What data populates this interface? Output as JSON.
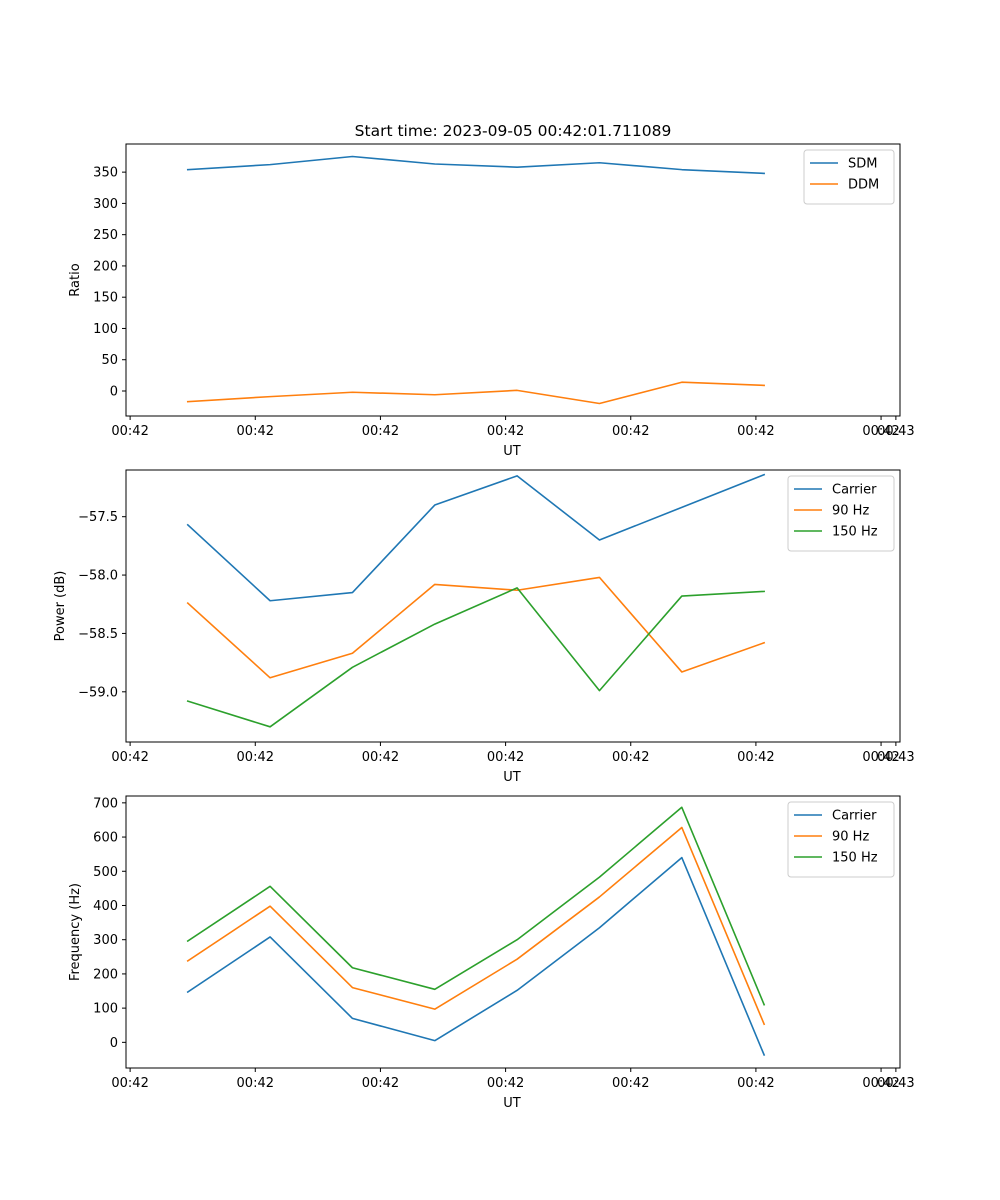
{
  "figure": {
    "title": "Start time: 2023-09-05 00:42:01.711089"
  },
  "colors": {
    "blue": "#1f77b4",
    "orange": "#ff7f0e",
    "green": "#2ca02c",
    "axes": "#000000",
    "legend_border": "#cccccc"
  },
  "chart_data": [
    {
      "type": "line",
      "title": "Start time: 2023-09-05 00:42:01.711089",
      "xlabel": "UT",
      "ylabel": "Ratio",
      "x": [
        0,
        1,
        2,
        3,
        4,
        5,
        6,
        7
      ],
      "xlim": [
        -0.75,
        8.65
      ],
      "xticks": [
        -0.7,
        0.82,
        2.34,
        3.86,
        5.38,
        6.9,
        8.42,
        8.6
      ],
      "xtick_labels": [
        "00:42",
        "00:42",
        "00:42",
        "00:42",
        "00:42",
        "00:42",
        "00:42",
        "00:43"
      ],
      "ylim": [
        -40,
        395
      ],
      "yticks": [
        0,
        50,
        100,
        150,
        200,
        250,
        300,
        350
      ],
      "ytick_labels": [
        "0",
        "50",
        "100",
        "150",
        "200",
        "250",
        "300",
        "350"
      ],
      "grid": false,
      "legend_position": "top-right",
      "series": [
        {
          "name": "SDM",
          "color": "#1f77b4",
          "values": [
            354,
            362,
            375,
            363,
            358,
            365,
            354,
            348
          ]
        },
        {
          "name": "DDM",
          "color": "#ff7f0e",
          "values": [
            -17,
            -9,
            -2,
            -6,
            1,
            -20,
            14,
            9
          ]
        }
      ]
    },
    {
      "type": "line",
      "title": "",
      "xlabel": "UT",
      "ylabel": "Power (dB)",
      "x": [
        0,
        1,
        2,
        3,
        4,
        5,
        6,
        7
      ],
      "xlim": [
        -0.75,
        8.65
      ],
      "xticks": [
        -0.7,
        0.82,
        2.34,
        3.86,
        5.38,
        6.9,
        8.42,
        8.6
      ],
      "xtick_labels": [
        "00:42",
        "00:42",
        "00:42",
        "00:42",
        "00:42",
        "00:42",
        "00:42",
        "00:43"
      ],
      "ylim": [
        -59.43,
        -57.1
      ],
      "yticks": [
        -59.0,
        -58.5,
        -58.0,
        -57.5
      ],
      "ytick_labels": [
        "−59.0",
        "−58.5",
        "−58.0",
        "−57.5"
      ],
      "grid": false,
      "legend_position": "top-right",
      "series": [
        {
          "name": "Carrier",
          "color": "#1f77b4",
          "values": [
            -57.57,
            -58.22,
            -58.15,
            -57.4,
            -57.15,
            -57.7,
            -57.42,
            -57.14
          ]
        },
        {
          "name": "90 Hz",
          "color": "#ff7f0e",
          "values": [
            -58.24,
            -58.88,
            -58.67,
            -58.08,
            -58.13,
            -58.02,
            -58.83,
            -58.58
          ]
        },
        {
          "name": "150 Hz",
          "color": "#2ca02c",
          "values": [
            -59.08,
            -59.3,
            -58.79,
            -58.42,
            -58.11,
            -58.99,
            -58.18,
            -58.14
          ]
        }
      ]
    },
    {
      "type": "line",
      "title": "",
      "xlabel": "UT",
      "ylabel": "Frequency (Hz)",
      "x": [
        0,
        1,
        2,
        3,
        4,
        5,
        6,
        7
      ],
      "xlim": [
        -0.75,
        8.65
      ],
      "xticks": [
        -0.7,
        0.82,
        2.34,
        3.86,
        5.38,
        6.9,
        8.42,
        8.6
      ],
      "xtick_labels": [
        "00:42",
        "00:42",
        "00:42",
        "00:42",
        "00:42",
        "00:42",
        "00:42",
        "00:43"
      ],
      "ylim": [
        -75,
        720
      ],
      "yticks": [
        0,
        100,
        200,
        300,
        400,
        500,
        600,
        700
      ],
      "ytick_labels": [
        "0",
        "100",
        "200",
        "300",
        "400",
        "500",
        "600",
        "700"
      ],
      "grid": false,
      "legend_position": "top-right",
      "series": [
        {
          "name": "Carrier",
          "color": "#1f77b4",
          "values": [
            147,
            308,
            70,
            5,
            152,
            335,
            540,
            -37
          ]
        },
        {
          "name": "90 Hz",
          "color": "#ff7f0e",
          "values": [
            238,
            398,
            160,
            97,
            243,
            425,
            628,
            53
          ]
        },
        {
          "name": "150 Hz",
          "color": "#2ca02c",
          "values": [
            296,
            456,
            218,
            155,
            300,
            483,
            687,
            110
          ]
        }
      ]
    }
  ]
}
